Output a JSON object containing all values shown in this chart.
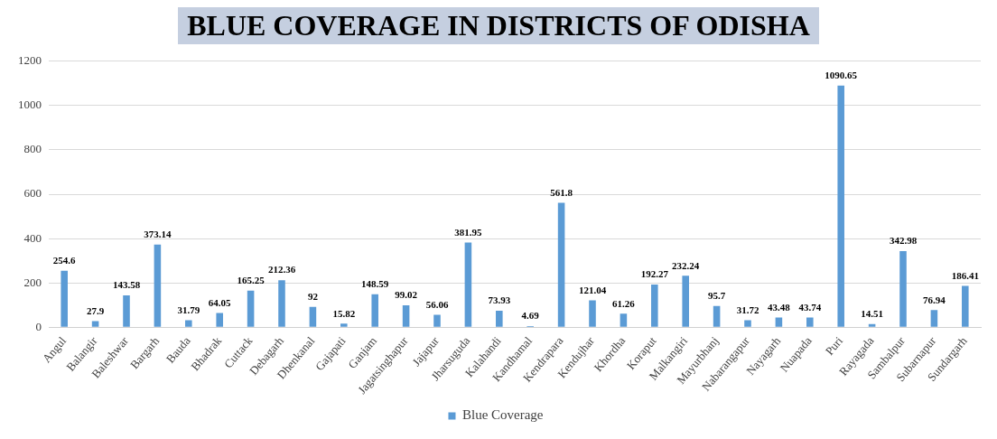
{
  "chart_data": {
    "type": "bar",
    "title": "BLUE COVERAGE IN DISTRICTS OF ODISHA",
    "categories": [
      "Angul",
      "Balangir",
      "Baleshwar",
      "Bargarh",
      "Bauda",
      "Bhadrak",
      "Cuttack",
      "Debagarh",
      "Dhenkanal",
      "Gajapati",
      "Ganjam",
      "Jagatsinghapur",
      "Jajapur",
      "Jharsuguda",
      "Kalahandi",
      "Kandhamal",
      "Kendrapara",
      "Kendujhar",
      "Khordha",
      "Koraput",
      "Malkangiri",
      "Mayurbhanj",
      "Nabarangapur",
      "Nayagarh",
      "Nuapada",
      "Puri",
      "Rayagada",
      "Sambalpur",
      "Subarnapur",
      "Sundargarh"
    ],
    "series": [
      {
        "name": "Blue Coverage",
        "color": "#5b9bd5",
        "values": [
          254.6,
          27.9,
          143.58,
          373.14,
          31.79,
          64.05,
          165.25,
          212.36,
          92,
          15.82,
          148.59,
          99.02,
          56.06,
          381.95,
          73.93,
          4.69,
          561.8,
          121.04,
          61.26,
          192.27,
          232.24,
          95.7,
          31.72,
          43.48,
          43.74,
          1090.65,
          14.51,
          342.98,
          76.94,
          186.41
        ]
      }
    ],
    "ylim": [
      0,
      1200
    ],
    "yticks": [
      0,
      200,
      400,
      600,
      800,
      1000,
      1200
    ],
    "grid": "y",
    "legend": "bottom",
    "data_labels": true
  }
}
